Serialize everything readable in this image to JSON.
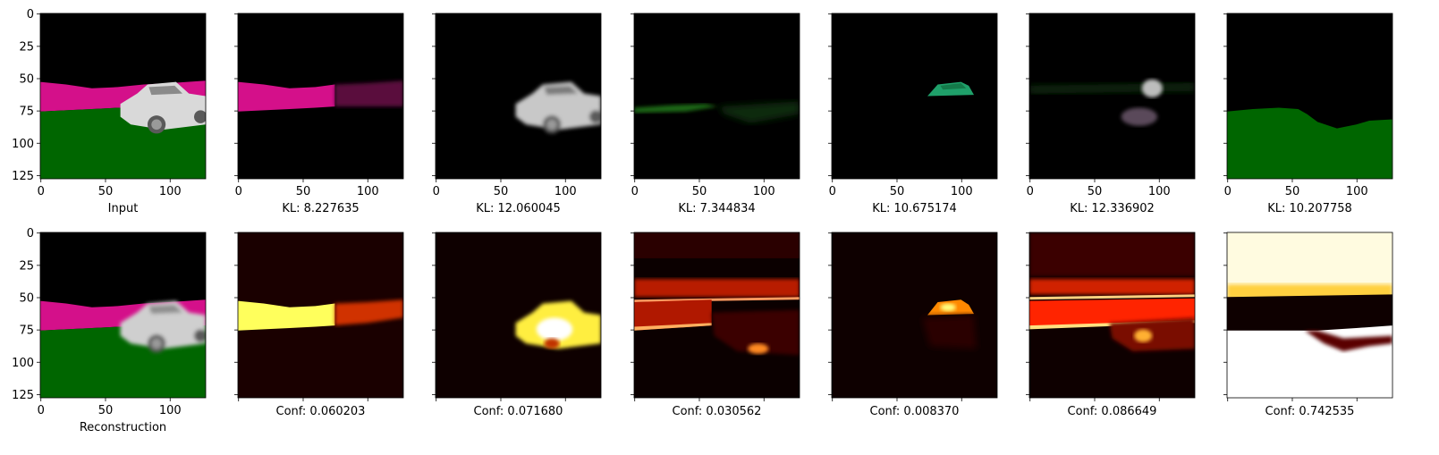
{
  "figure": {
    "background": "#ffffff",
    "colors": {
      "sky": "#000000",
      "wall": "#d4108a",
      "ground": "#006600",
      "car": "#d9d9d9",
      "car_shadow": "#8a8a8a",
      "teal_roof": "#1fa06a",
      "heat_low": "#000000",
      "heat_mid": "#cc1800",
      "heat_high": "#ffff40",
      "heat_max": "#ffffff"
    }
  },
  "chart_data": [
    {
      "type": "image-grid",
      "rows": 2,
      "cols": 7,
      "image_size": [
        128,
        128
      ],
      "x_ticks": [
        "0",
        "50",
        "100"
      ],
      "y_ticks": [
        "0",
        "25",
        "50",
        "75",
        "100",
        "125"
      ],
      "top_row": [
        {
          "label": "Input",
          "kind": "scene"
        },
        {
          "label": "KL: 8.227635",
          "kind": "mask_wall"
        },
        {
          "label": "KL: 12.060045",
          "kind": "mask_car"
        },
        {
          "label": "KL: 7.344834",
          "kind": "mask_faint_green"
        },
        {
          "label": "KL: 10.675174",
          "kind": "mask_roof"
        },
        {
          "label": "KL: 12.336902",
          "kind": "mask_faint_car"
        },
        {
          "label": "KL: 10.207758",
          "kind": "mask_ground"
        }
      ],
      "bottom_row": [
        {
          "label": "Reconstruction",
          "kind": "scene_blur"
        },
        {
          "label": "Conf: 0.060203",
          "kind": "heat_wall"
        },
        {
          "label": "Conf: 0.071680",
          "kind": "heat_car"
        },
        {
          "label": "Conf: 0.030562",
          "kind": "heat_bands"
        },
        {
          "label": "Conf: 0.008370",
          "kind": "heat_roof"
        },
        {
          "label": "Conf: 0.086649",
          "kind": "heat_bands2"
        },
        {
          "label": "Conf: 0.742535",
          "kind": "heat_sky"
        }
      ]
    }
  ]
}
